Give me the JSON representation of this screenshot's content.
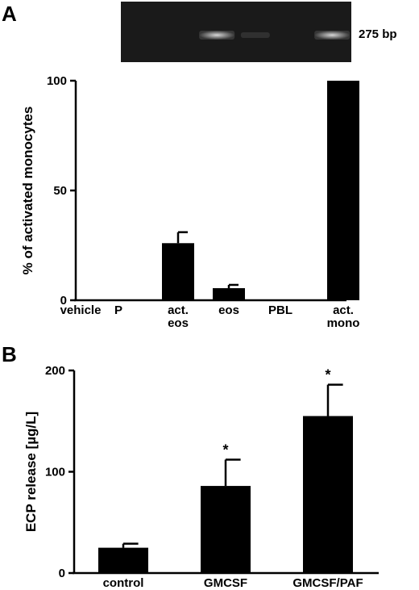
{
  "panel_a": {
    "letter": "A",
    "gel": {
      "band_size_label": "275 bp",
      "lanes_with_band": [
        3,
        6
      ],
      "faint_lanes": [
        4
      ],
      "lane_count": 6,
      "background_color": "#1a1a1a",
      "band_color": "#d8d8d8"
    }
  },
  "panel_b": {
    "letter": "B"
  },
  "chart_data": [
    {
      "type": "bar",
      "panel": "A",
      "categories": [
        [
          "vehicle"
        ],
        [
          "P"
        ],
        [
          "act.",
          "eos"
        ],
        [
          "eos"
        ],
        [
          "PBL"
        ],
        [
          "act.",
          "mono"
        ]
      ],
      "values": [
        0,
        0,
        26,
        5.5,
        0,
        100
      ],
      "error": [
        0,
        0,
        5,
        1.5,
        0,
        0
      ],
      "ylabel": "% of activated monocytes",
      "xlabel": "",
      "ylim": [
        0,
        100
      ],
      "yticks": [
        0,
        50,
        100
      ],
      "bar_color": "#000000",
      "grid": false
    },
    {
      "type": "bar",
      "panel": "B",
      "categories": [
        [
          "control"
        ],
        [
          "GMCSF"
        ],
        [
          "GMCSF/PAF"
        ]
      ],
      "values": [
        25,
        86,
        155
      ],
      "error": [
        4,
        26,
        31
      ],
      "significance": [
        "",
        "*",
        "*"
      ],
      "ylabel": "ECP release [µg/L]",
      "xlabel": "",
      "ylim": [
        0,
        200
      ],
      "yticks": [
        0,
        100,
        200
      ],
      "bar_color": "#000000",
      "grid": false
    }
  ]
}
